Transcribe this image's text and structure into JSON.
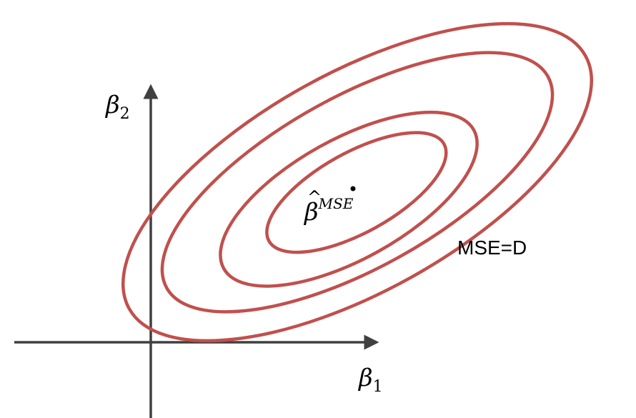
{
  "labels": {
    "y_axis_symbol": "β",
    "y_axis_subscript": "2",
    "x_axis_symbol": "β",
    "x_axis_subscript": "1",
    "center_hat": "^",
    "center_symbol": "β",
    "center_superscript": "MSE",
    "contour_label": "MSE=D"
  },
  "colors": {
    "contour": "#c0504d",
    "axis": "#404040",
    "text": "#000000"
  },
  "contours": {
    "count": 4
  }
}
